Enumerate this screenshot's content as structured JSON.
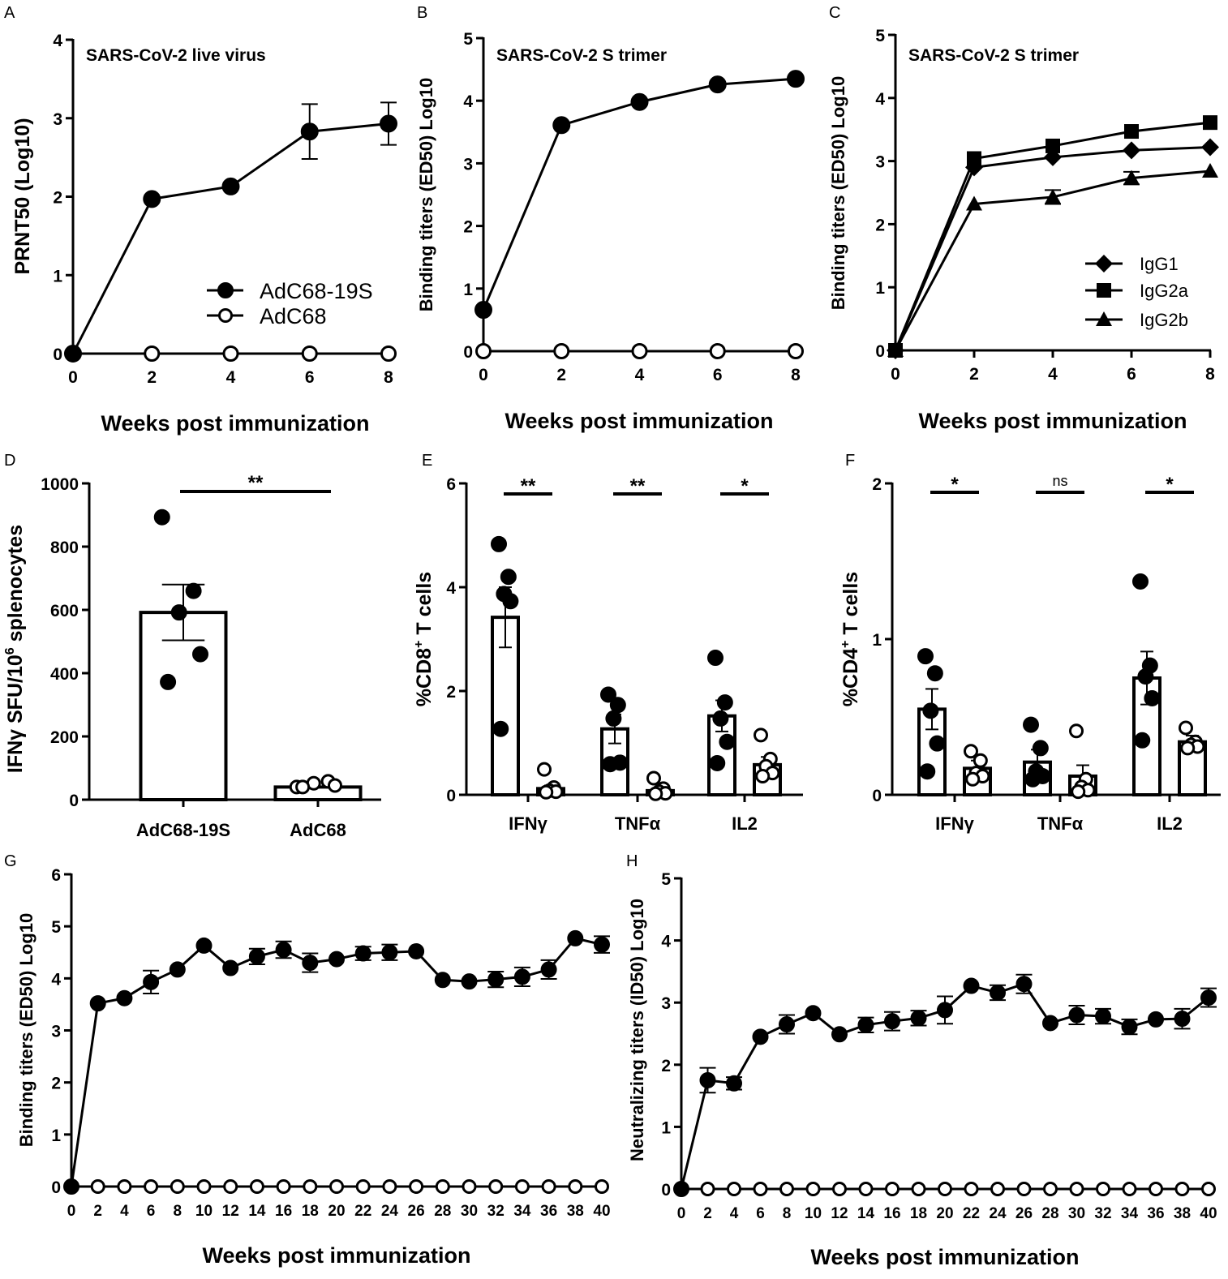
{
  "colors": {
    "ink": "#000000",
    "paper": "#ffffff"
  },
  "chart_data": [
    {
      "id": "A",
      "type": "line",
      "panel_label": "A",
      "title": "SARS-CoV-2 live virus",
      "xlabel": "Weeks post immunization",
      "ylabel": "PRNT50 (Log10)",
      "xlim": [
        0,
        8
      ],
      "ylim": [
        0,
        4
      ],
      "xticks": [
        "0",
        "2",
        "4",
        "6",
        "8"
      ],
      "yticks": [
        "0",
        "1",
        "2",
        "3",
        "4"
      ],
      "legend_position": "bottom-right",
      "series": [
        {
          "name": "AdC68-19S",
          "marker": "circle-filled",
          "x": [
            0,
            2,
            4,
            6,
            8
          ],
          "y": [
            0,
            1.97,
            2.13,
            2.83,
            2.93
          ],
          "err": [
            0,
            0,
            0,
            0.35,
            0.27
          ]
        },
        {
          "name": "AdC68",
          "marker": "circle-open",
          "x": [
            0,
            2,
            4,
            6,
            8
          ],
          "y": [
            0,
            0,
            0,
            0,
            0
          ],
          "err": [
            0,
            0,
            0,
            0,
            0
          ]
        }
      ]
    },
    {
      "id": "B",
      "type": "line",
      "panel_label": "B",
      "title": "SARS-CoV-2 S trimer",
      "xlabel": "Weeks post immunization",
      "ylabel": "Binding titers (ED50) Log10",
      "xlim": [
        0,
        8
      ],
      "ylim": [
        0,
        5
      ],
      "xticks": [
        "0",
        "2",
        "4",
        "6",
        "8"
      ],
      "yticks": [
        "0",
        "1",
        "2",
        "3",
        "4",
        "5"
      ],
      "series": [
        {
          "name": "AdC68-19S",
          "marker": "circle-filled",
          "x": [
            0,
            2,
            4,
            6,
            8
          ],
          "y": [
            0.66,
            3.61,
            3.98,
            4.26,
            4.35
          ],
          "err": [
            0,
            0,
            0,
            0,
            0
          ]
        },
        {
          "name": "AdC68",
          "marker": "circle-open",
          "x": [
            0,
            2,
            4,
            6,
            8
          ],
          "y": [
            0,
            0,
            0,
            0,
            0
          ],
          "err": [
            0,
            0,
            0,
            0,
            0
          ]
        }
      ]
    },
    {
      "id": "C",
      "type": "line",
      "panel_label": "C",
      "title": "SARS-CoV-2 S trimer",
      "xlabel": "Weeks post immunization",
      "ylabel": "Binding titers (ED50) Log10",
      "xlim": [
        0,
        8
      ],
      "ylim": [
        0,
        5
      ],
      "xticks": [
        "0",
        "2",
        "4",
        "6",
        "8"
      ],
      "yticks": [
        "0",
        "1",
        "2",
        "3",
        "4",
        "5"
      ],
      "legend_position": "right",
      "series": [
        {
          "name": "IgG1",
          "marker": "diamond",
          "x": [
            0,
            2,
            4,
            6,
            8
          ],
          "y": [
            0,
            2.9,
            3.06,
            3.17,
            3.22
          ],
          "err": [
            0,
            0,
            0,
            0,
            0
          ]
        },
        {
          "name": "IgG2a",
          "marker": "square",
          "x": [
            0,
            2,
            4,
            6,
            8
          ],
          "y": [
            0,
            3.04,
            3.24,
            3.47,
            3.61
          ],
          "err": [
            0,
            0,
            0,
            0,
            0
          ]
        },
        {
          "name": "IgG2b",
          "marker": "triangle",
          "x": [
            0,
            2,
            4,
            6,
            8
          ],
          "y": [
            0,
            2.32,
            2.43,
            2.73,
            2.84
          ],
          "err": [
            0,
            0,
            0.11,
            0.1,
            0
          ]
        }
      ]
    },
    {
      "id": "D",
      "type": "bar",
      "panel_label": "D",
      "ylabel_pre": "IFNγ SFU/10",
      "ylabel_sup": "6",
      "ylabel_post": " splenocytes",
      "ylim": [
        0,
        1000
      ],
      "yticks": [
        "0",
        "200",
        "400",
        "600",
        "800",
        "1000"
      ],
      "categories": [
        "AdC68-19S",
        "AdC68"
      ],
      "values": [
        592,
        40
      ],
      "sem": [
        88,
        5
      ],
      "points": [
        [
          893,
          660,
          592,
          460,
          372
        ],
        [
          40,
          58,
          52,
          45,
          40
        ]
      ],
      "point_style": [
        "filled",
        "open"
      ],
      "significance": [
        "**"
      ]
    },
    {
      "id": "E",
      "type": "bar",
      "panel_label": "E",
      "ylabel_pre": "%CD8",
      "ylabel_sup": "+",
      "ylabel_post": " T cells",
      "ylim": [
        0,
        6
      ],
      "yticks": [
        "0",
        "2",
        "4",
        "6"
      ],
      "categories": [
        "IFNγ",
        "TNFα",
        "IL2"
      ],
      "groups": [
        "AdC68-19S",
        "AdC68"
      ],
      "values": [
        [
          3.42,
          0.12
        ],
        [
          1.27,
          0.08
        ],
        [
          1.52,
          0.58
        ]
      ],
      "sem": [
        [
          0.58,
          0.06
        ],
        [
          0.28,
          0.05
        ],
        [
          0.3,
          0.15
        ]
      ],
      "points": [
        [
          [
            4.83,
            4.2,
            3.87,
            3.73,
            1.27
          ],
          [
            0.49,
            0.14,
            0.08,
            0.06,
            0.05
          ]
        ],
        [
          [
            1.93,
            1.73,
            1.47,
            0.62,
            0.59
          ],
          [
            0.32,
            0.12,
            0.06,
            0.03,
            0.02
          ]
        ],
        [
          [
            2.64,
            1.78,
            1.47,
            1.02,
            0.61
          ],
          [
            1.15,
            0.69,
            0.55,
            0.42,
            0.36
          ]
        ]
      ],
      "significance": [
        "**",
        "**",
        "*"
      ]
    },
    {
      "id": "F",
      "type": "bar",
      "panel_label": "F",
      "ylabel_pre": "%CD4",
      "ylabel_sup": "+",
      "ylabel_post": " T cells",
      "ylim": [
        0,
        2
      ],
      "yticks": [
        "0",
        "1",
        "2"
      ],
      "categories": [
        "IFNγ",
        "TNFα",
        "IL2"
      ],
      "groups": [
        "AdC68-19S",
        "AdC68"
      ],
      "values": [
        [
          0.55,
          0.17
        ],
        [
          0.21,
          0.12
        ],
        [
          0.75,
          0.34
        ]
      ],
      "sem": [
        [
          0.13,
          0.05
        ],
        [
          0.08,
          0.07
        ],
        [
          0.17,
          0.04
        ]
      ],
      "points": [
        [
          [
            0.89,
            0.78,
            0.54,
            0.33,
            0.15
          ],
          [
            0.28,
            0.22,
            0.14,
            0.12,
            0.1
          ]
        ],
        [
          [
            0.45,
            0.3,
            0.15,
            0.12,
            0.1
          ],
          [
            0.41,
            0.1,
            0.05,
            0.03,
            0.02
          ]
        ],
        [
          [
            1.37,
            0.83,
            0.76,
            0.62,
            0.35
          ],
          [
            0.43,
            0.34,
            0.32,
            0.31,
            0.3
          ]
        ]
      ],
      "significance": [
        "*",
        "ns",
        "*"
      ]
    },
    {
      "id": "G",
      "type": "line",
      "panel_label": "G",
      "xlabel": "Weeks post immunization",
      "ylabel": "Binding titers (ED50) Log10",
      "xlim": [
        0,
        40
      ],
      "ylim": [
        0,
        6
      ],
      "xticks": [
        "0",
        "2",
        "4",
        "6",
        "8",
        "10",
        "12",
        "14",
        "16",
        "18",
        "20",
        "22",
        "24",
        "26",
        "28",
        "30",
        "32",
        "34",
        "36",
        "38",
        "40"
      ],
      "yticks": [
        "0",
        "1",
        "2",
        "3",
        "4",
        "5",
        "6"
      ],
      "series": [
        {
          "name": "AdC68-19S",
          "marker": "circle-filled",
          "x": [
            0,
            2,
            4,
            6,
            8,
            10,
            12,
            14,
            16,
            18,
            20,
            22,
            24,
            26,
            28,
            30,
            32,
            34,
            36,
            38,
            40
          ],
          "y": [
            0,
            3.52,
            3.62,
            3.93,
            4.17,
            4.63,
            4.2,
            4.42,
            4.55,
            4.3,
            4.37,
            4.48,
            4.5,
            4.52,
            3.97,
            3.94,
            3.98,
            4.03,
            4.17,
            4.77,
            4.65
          ],
          "err": [
            0,
            0,
            0,
            0.22,
            0,
            0,
            0,
            0.15,
            0.16,
            0.18,
            0,
            0.13,
            0.15,
            0,
            0,
            0,
            0.15,
            0.18,
            0.18,
            0,
            0.16
          ]
        },
        {
          "name": "AdC68",
          "marker": "circle-open",
          "x": [
            0,
            2,
            4,
            6,
            8,
            10,
            12,
            14,
            16,
            18,
            20,
            22,
            24,
            26,
            28,
            30,
            32,
            34,
            36,
            38,
            40
          ],
          "y": [
            0,
            0,
            0,
            0,
            0,
            0,
            0,
            0,
            0,
            0,
            0,
            0,
            0,
            0,
            0,
            0,
            0,
            0,
            0,
            0,
            0
          ],
          "err": [
            0,
            0,
            0,
            0,
            0,
            0,
            0,
            0,
            0,
            0,
            0,
            0,
            0,
            0,
            0,
            0,
            0,
            0,
            0,
            0,
            0
          ]
        }
      ]
    },
    {
      "id": "H",
      "type": "line",
      "panel_label": "H",
      "xlabel": "Weeks post immunization",
      "ylabel": "Neutralizing titers (ID50) Log10",
      "xlim": [
        0,
        40
      ],
      "ylim": [
        0,
        5
      ],
      "xticks": [
        "0",
        "2",
        "4",
        "6",
        "8",
        "10",
        "12",
        "14",
        "16",
        "18",
        "20",
        "22",
        "24",
        "26",
        "28",
        "30",
        "32",
        "34",
        "36",
        "38",
        "40"
      ],
      "yticks": [
        "0",
        "1",
        "2",
        "3",
        "4",
        "5"
      ],
      "series": [
        {
          "name": "AdC68-19S",
          "marker": "circle-filled",
          "x": [
            0,
            2,
            4,
            6,
            8,
            10,
            12,
            14,
            16,
            18,
            20,
            22,
            24,
            26,
            28,
            30,
            32,
            34,
            36,
            38,
            40
          ],
          "y": [
            0,
            1.75,
            1.7,
            2.45,
            2.65,
            2.83,
            2.49,
            2.64,
            2.7,
            2.75,
            2.88,
            3.27,
            3.16,
            3.3,
            2.67,
            2.8,
            2.78,
            2.61,
            2.73,
            2.74,
            3.08
          ],
          "err": [
            0,
            0.2,
            0.1,
            0,
            0.15,
            0,
            0,
            0.12,
            0.15,
            0.12,
            0.22,
            0,
            0.12,
            0.15,
            0,
            0.15,
            0.12,
            0.12,
            0,
            0.16,
            0.15
          ]
        },
        {
          "name": "AdC68",
          "marker": "circle-open",
          "x": [
            0,
            2,
            4,
            6,
            8,
            10,
            12,
            14,
            16,
            18,
            20,
            22,
            24,
            26,
            28,
            30,
            32,
            34,
            36,
            38,
            40
          ],
          "y": [
            0,
            0,
            0,
            0,
            0,
            0,
            0,
            0,
            0,
            0,
            0,
            0,
            0,
            0,
            0,
            0,
            0,
            0,
            0,
            0,
            0
          ],
          "err": [
            0,
            0,
            0,
            0,
            0,
            0,
            0,
            0,
            0,
            0,
            0,
            0,
            0,
            0,
            0,
            0,
            0,
            0,
            0,
            0,
            0
          ]
        }
      ]
    }
  ]
}
